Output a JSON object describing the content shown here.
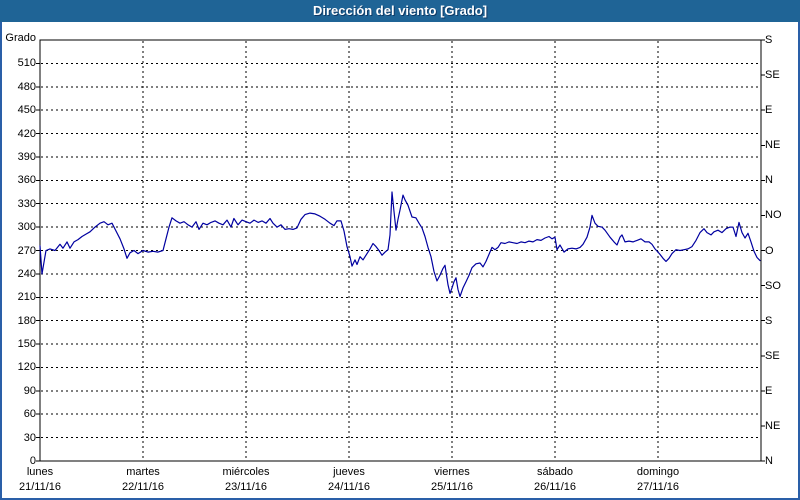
{
  "window": {
    "title": "Dirección del viento [Grado]"
  },
  "colors": {
    "titlebar_bg": "#1F6496",
    "titlebar_text": "#FFFFFF",
    "frame_border": "#2A5FA8",
    "plot_border": "#000000",
    "grid": "#000000",
    "line": "#0000A0",
    "background": "#FFFFFF",
    "label_text": "#000000"
  },
  "chart_data": {
    "type": "line",
    "title": "Dirección del viento [Grado]",
    "ylabel_left": "Grado",
    "ylim": [
      0,
      540
    ],
    "y_left_tick_step": 30,
    "y_left_ticks": [
      0,
      30,
      60,
      90,
      120,
      150,
      180,
      210,
      240,
      270,
      300,
      330,
      360,
      390,
      420,
      450,
      480,
      510
    ],
    "y_right_ticks": [
      {
        "deg": 540,
        "label": "S"
      },
      {
        "deg": 495,
        "label": "SE"
      },
      {
        "deg": 450,
        "label": "E"
      },
      {
        "deg": 405,
        "label": "NE"
      },
      {
        "deg": 360,
        "label": "N"
      },
      {
        "deg": 315,
        "label": "NO"
      },
      {
        "deg": 270,
        "label": "O"
      },
      {
        "deg": 225,
        "label": "SO"
      },
      {
        "deg": 180,
        "label": "S"
      },
      {
        "deg": 135,
        "label": "SE"
      },
      {
        "deg": 90,
        "label": "E"
      },
      {
        "deg": 45,
        "label": "NE"
      },
      {
        "deg": 0,
        "label": "N"
      }
    ],
    "x_days": [
      {
        "name": "lunes",
        "date": "21/11/16"
      },
      {
        "name": "martes",
        "date": "22/11/16"
      },
      {
        "name": "miércoles",
        "date": "23/11/16"
      },
      {
        "name": "jueves",
        "date": "24/11/16"
      },
      {
        "name": "viernes",
        "date": "25/11/16"
      },
      {
        "name": "sábado",
        "date": "26/11/16"
      },
      {
        "name": "domingo",
        "date": "27/11/16"
      }
    ],
    "xlim_days": [
      0,
      7
    ],
    "grid": "dashed",
    "legend": "none",
    "series": [
      {
        "name": "Dirección del viento",
        "color": "#0000A0",
        "units": "Grado",
        "points": [
          [
            0,
            276
          ],
          [
            0.019,
            240
          ],
          [
            0.039,
            255
          ],
          [
            0.058,
            270
          ],
          [
            0.097,
            272
          ],
          [
            0.146,
            270
          ],
          [
            0.194,
            278
          ],
          [
            0.223,
            273
          ],
          [
            0.262,
            281
          ],
          [
            0.291,
            273
          ],
          [
            0.33,
            281
          ],
          [
            0.369,
            284
          ],
          [
            0.408,
            288
          ],
          [
            0.447,
            291
          ],
          [
            0.485,
            294
          ],
          [
            0.534,
            300
          ],
          [
            0.583,
            305
          ],
          [
            0.621,
            307
          ],
          [
            0.66,
            303
          ],
          [
            0.699,
            305
          ],
          [
            0.738,
            295
          ],
          [
            0.777,
            285
          ],
          [
            0.816,
            272
          ],
          [
            0.845,
            260
          ],
          [
            0.874,
            267
          ],
          [
            0.913,
            270
          ],
          [
            0.951,
            266
          ],
          [
            1,
            270
          ],
          [
            1.049,
            268
          ],
          [
            1.097,
            269
          ],
          [
            1.146,
            268
          ],
          [
            1.194,
            270
          ],
          [
            1.223,
            285
          ],
          [
            1.252,
            300
          ],
          [
            1.282,
            312
          ],
          [
            1.32,
            308
          ],
          [
            1.359,
            305
          ],
          [
            1.398,
            307
          ],
          [
            1.437,
            303
          ],
          [
            1.476,
            300
          ],
          [
            1.515,
            307
          ],
          [
            1.544,
            297
          ],
          [
            1.583,
            305
          ],
          [
            1.621,
            303
          ],
          [
            1.66,
            306
          ],
          [
            1.699,
            308
          ],
          [
            1.738,
            305
          ],
          [
            1.777,
            303
          ],
          [
            1.816,
            309
          ],
          [
            1.854,
            300
          ],
          [
            1.883,
            311
          ],
          [
            1.922,
            303
          ],
          [
            1.961,
            309
          ],
          [
            2,
            307
          ],
          [
            2.039,
            305
          ],
          [
            2.078,
            309
          ],
          [
            2.117,
            306
          ],
          [
            2.155,
            308
          ],
          [
            2.194,
            305
          ],
          [
            2.233,
            311
          ],
          [
            2.262,
            305
          ],
          [
            2.301,
            300
          ],
          [
            2.34,
            303
          ],
          [
            2.379,
            297
          ],
          [
            2.417,
            298
          ],
          [
            2.456,
            297
          ],
          [
            2.495,
            299
          ],
          [
            2.534,
            310
          ],
          [
            2.573,
            316
          ],
          [
            2.621,
            318
          ],
          [
            2.67,
            317
          ],
          [
            2.718,
            314
          ],
          [
            2.767,
            310
          ],
          [
            2.816,
            305
          ],
          [
            2.854,
            302
          ],
          [
            2.883,
            308
          ],
          [
            2.922,
            308
          ],
          [
            2.951,
            295
          ],
          [
            2.981,
            275
          ],
          [
            3.01,
            262
          ],
          [
            3.029,
            250
          ],
          [
            3.058,
            258
          ],
          [
            3.078,
            252
          ],
          [
            3.107,
            262
          ],
          [
            3.136,
            258
          ],
          [
            3.165,
            264
          ],
          [
            3.204,
            272
          ],
          [
            3.233,
            279
          ],
          [
            3.262,
            275
          ],
          [
            3.291,
            270
          ],
          [
            3.32,
            264
          ],
          [
            3.35,
            268
          ],
          [
            3.379,
            271
          ],
          [
            3.398,
            290
          ],
          [
            3.417,
            345
          ],
          [
            3.437,
            320
          ],
          [
            3.456,
            296
          ],
          [
            3.476,
            310
          ],
          [
            3.495,
            322
          ],
          [
            3.524,
            341
          ],
          [
            3.544,
            335
          ],
          [
            3.573,
            328
          ],
          [
            3.612,
            313
          ],
          [
            3.65,
            312
          ],
          [
            3.68,
            305
          ],
          [
            3.709,
            299
          ],
          [
            3.738,
            288
          ],
          [
            3.767,
            274
          ],
          [
            3.796,
            262
          ],
          [
            3.825,
            243
          ],
          [
            3.854,
            231
          ],
          [
            3.883,
            238
          ],
          [
            3.913,
            247
          ],
          [
            3.932,
            251
          ],
          [
            3.961,
            226
          ],
          [
            3.981,
            215
          ],
          [
            4,
            222
          ],
          [
            4.019,
            230
          ],
          [
            4.039,
            235
          ],
          [
            4.058,
            220
          ],
          [
            4.078,
            211
          ],
          [
            4.107,
            222
          ],
          [
            4.136,
            230
          ],
          [
            4.165,
            238
          ],
          [
            4.194,
            248
          ],
          [
            4.233,
            253
          ],
          [
            4.272,
            254
          ],
          [
            4.301,
            249
          ],
          [
            4.33,
            256
          ],
          [
            4.359,
            265
          ],
          [
            4.388,
            274
          ],
          [
            4.417,
            271
          ],
          [
            4.447,
            274
          ],
          [
            4.476,
            280
          ],
          [
            4.515,
            279
          ],
          [
            4.553,
            281
          ],
          [
            4.592,
            280
          ],
          [
            4.631,
            279
          ],
          [
            4.67,
            281
          ],
          [
            4.709,
            280
          ],
          [
            4.748,
            282
          ],
          [
            4.786,
            281
          ],
          [
            4.825,
            284
          ],
          [
            4.864,
            283
          ],
          [
            4.903,
            286
          ],
          [
            4.942,
            288
          ],
          [
            4.971,
            285
          ],
          [
            5,
            287
          ],
          [
            5.019,
            271
          ],
          [
            5.049,
            277
          ],
          [
            5.087,
            268
          ],
          [
            5.126,
            272
          ],
          [
            5.165,
            273
          ],
          [
            5.204,
            272
          ],
          [
            5.243,
            274
          ],
          [
            5.272,
            278
          ],
          [
            5.311,
            287
          ],
          [
            5.34,
            300
          ],
          [
            5.359,
            315
          ],
          [
            5.388,
            305
          ],
          [
            5.417,
            301
          ],
          [
            5.456,
            300
          ],
          [
            5.485,
            296
          ],
          [
            5.534,
            287
          ],
          [
            5.573,
            281
          ],
          [
            5.602,
            277
          ],
          [
            5.631,
            287
          ],
          [
            5.65,
            290
          ],
          [
            5.68,
            281
          ],
          [
            5.718,
            282
          ],
          [
            5.757,
            281
          ],
          [
            5.796,
            283
          ],
          [
            5.835,
            285
          ],
          [
            5.874,
            281
          ],
          [
            5.913,
            281
          ],
          [
            5.942,
            278
          ],
          [
            5.971,
            272
          ],
          [
            6,
            268
          ],
          [
            6.019,
            265
          ],
          [
            6.049,
            260
          ],
          [
            6.078,
            256
          ],
          [
            6.107,
            260
          ],
          [
            6.136,
            266
          ],
          [
            6.175,
            271
          ],
          [
            6.214,
            270
          ],
          [
            6.252,
            271
          ],
          [
            6.291,
            272
          ],
          [
            6.33,
            275
          ],
          [
            6.369,
            283
          ],
          [
            6.408,
            293
          ],
          [
            6.447,
            298
          ],
          [
            6.476,
            293
          ],
          [
            6.515,
            290
          ],
          [
            6.544,
            294
          ],
          [
            6.583,
            296
          ],
          [
            6.621,
            293
          ],
          [
            6.66,
            298
          ],
          [
            6.699,
            300
          ],
          [
            6.728,
            300
          ],
          [
            6.757,
            288
          ],
          [
            6.786,
            306
          ],
          [
            6.816,
            293
          ],
          [
            6.845,
            286
          ],
          [
            6.874,
            292
          ],
          [
            6.903,
            281
          ],
          [
            6.932,
            269
          ],
          [
            6.961,
            261
          ],
          [
            6.99,
            257
          ]
        ]
      }
    ]
  }
}
